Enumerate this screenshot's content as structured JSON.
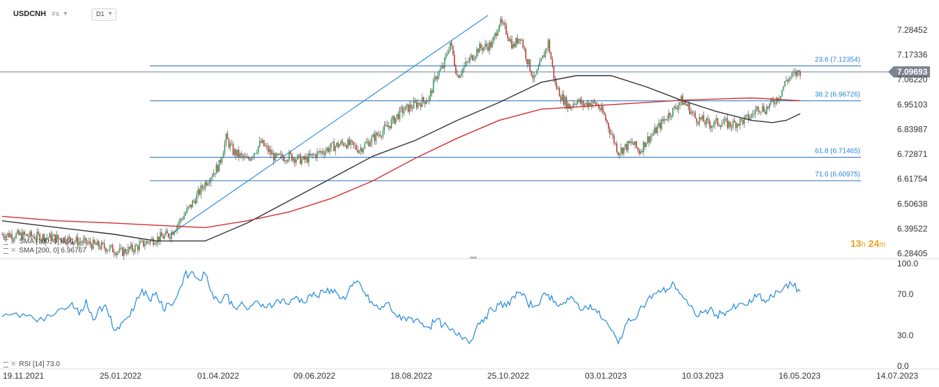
{
  "header": {
    "symbol": "USDCNH",
    "market": "FX",
    "timeframe": "D1"
  },
  "chart_data": {
    "type": "candlestick",
    "main_ylim": [
      6.27,
      7.35
    ],
    "yticks": [
      "7.28452",
      "7.17336",
      "7.06220",
      "6.95103",
      "6.83987",
      "6.72871",
      "6.61754",
      "6.50638",
      "6.39522",
      "6.28405"
    ],
    "ytick_values": [
      7.28452,
      7.17336,
      7.0622,
      6.95103,
      6.83987,
      6.72871,
      6.61754,
      6.50638,
      6.39522,
      6.28405
    ],
    "xticks": [
      "19.11.2021",
      "25.01.2022",
      "01.04.2022",
      "09.06.2022",
      "18.08.2022",
      "25.10.2022",
      "03.01.2023",
      "10.03.2023",
      "16.05.2023",
      "14.07.2023"
    ],
    "current_price": "7.09693",
    "current_price_value": 7.09693,
    "countdown_hours": "13",
    "countdown_h": "h",
    "countdown_minutes": "24",
    "countdown_m": "m",
    "fibonacci": [
      {
        "label": "23.6 (7.12354)",
        "value": 7.12354
      },
      {
        "label": "38.2 (6.96726)",
        "value": 6.96726
      },
      {
        "label": "61.8 (6.71465)",
        "value": 6.71465
      },
      {
        "label": "71.6 (6.60975)",
        "value": 6.60975
      }
    ],
    "price_path": [
      [
        0,
        6.37
      ],
      [
        25,
        6.36
      ],
      [
        45,
        6.35
      ],
      [
        60,
        6.33
      ],
      [
        75,
        6.31
      ],
      [
        85,
        6.29
      ],
      [
        95,
        6.31
      ],
      [
        105,
        6.34
      ],
      [
        120,
        6.37
      ],
      [
        135,
        6.5
      ],
      [
        145,
        6.6
      ],
      [
        155,
        6.68
      ],
      [
        160,
        6.8
      ],
      [
        165,
        6.74
      ],
      [
        175,
        6.7
      ],
      [
        185,
        6.78
      ],
      [
        195,
        6.71
      ],
      [
        205,
        6.72
      ],
      [
        215,
        6.7
      ],
      [
        225,
        6.73
      ],
      [
        235,
        6.76
      ],
      [
        245,
        6.78
      ],
      [
        255,
        6.75
      ],
      [
        265,
        6.8
      ],
      [
        275,
        6.85
      ],
      [
        285,
        6.92
      ],
      [
        295,
        6.95
      ],
      [
        305,
        6.98
      ],
      [
        310,
        7.08
      ],
      [
        315,
        7.12
      ],
      [
        320,
        7.23
      ],
      [
        325,
        7.08
      ],
      [
        330,
        7.12
      ],
      [
        340,
        7.2
      ],
      [
        350,
        7.22
      ],
      [
        355,
        7.32
      ],
      [
        360,
        7.28
      ],
      [
        365,
        7.21
      ],
      [
        370,
        7.26
      ],
      [
        375,
        7.15
      ],
      [
        380,
        7.06
      ],
      [
        385,
        7.14
      ],
      [
        390,
        7.23
      ],
      [
        395,
        7.04
      ],
      [
        400,
        6.98
      ],
      [
        405,
        6.94
      ],
      [
        410,
        6.97
      ],
      [
        415,
        6.95
      ],
      [
        420,
        6.96
      ],
      [
        425,
        6.95
      ],
      [
        430,
        6.9
      ],
      [
        435,
        6.82
      ],
      [
        440,
        6.74
      ],
      [
        445,
        6.76
      ],
      [
        450,
        6.78
      ],
      [
        455,
        6.74
      ],
      [
        460,
        6.79
      ],
      [
        465,
        6.82
      ],
      [
        470,
        6.86
      ],
      [
        475,
        6.9
      ],
      [
        480,
        6.93
      ],
      [
        485,
        6.97
      ],
      [
        490,
        6.94
      ],
      [
        495,
        6.89
      ],
      [
        500,
        6.88
      ],
      [
        505,
        6.86
      ],
      [
        510,
        6.87
      ],
      [
        515,
        6.87
      ],
      [
        520,
        6.86
      ],
      [
        525,
        6.87
      ],
      [
        530,
        6.88
      ],
      [
        535,
        6.9
      ],
      [
        540,
        6.94
      ],
      [
        545,
        6.93
      ],
      [
        550,
        6.96
      ],
      [
        555,
        6.99
      ],
      [
        560,
        7.06
      ],
      [
        565,
        7.08
      ],
      [
        570,
        7.1
      ]
    ],
    "trend_line": [
      [
        0,
        6.36
      ],
      [
        355,
        7.35
      ]
    ],
    "series": [
      {
        "name": "SMA [100, 0] 6.91",
        "color": "#333333",
        "values": [
          [
            0,
            6.43
          ],
          [
            40,
            6.4
          ],
          [
            80,
            6.37
          ],
          [
            110,
            6.34
          ],
          [
            145,
            6.34
          ],
          [
            175,
            6.42
          ],
          [
            205,
            6.52
          ],
          [
            235,
            6.62
          ],
          [
            265,
            6.72
          ],
          [
            295,
            6.79
          ],
          [
            325,
            6.88
          ],
          [
            355,
            6.96
          ],
          [
            385,
            7.05
          ],
          [
            410,
            7.08
          ],
          [
            435,
            7.08
          ],
          [
            460,
            7.03
          ],
          [
            485,
            6.97
          ],
          [
            510,
            6.92
          ],
          [
            535,
            6.88
          ],
          [
            550,
            6.87
          ],
          [
            560,
            6.88
          ],
          [
            570,
            6.91
          ]
        ]
      },
      {
        "name": "SMA [200, 0] 6.96767",
        "color": "#d03030",
        "values": [
          [
            0,
            6.45
          ],
          [
            40,
            6.43
          ],
          [
            80,
            6.42
          ],
          [
            110,
            6.41
          ],
          [
            145,
            6.4
          ],
          [
            175,
            6.43
          ],
          [
            205,
            6.47
          ],
          [
            235,
            6.53
          ],
          [
            265,
            6.61
          ],
          [
            295,
            6.71
          ],
          [
            325,
            6.8
          ],
          [
            355,
            6.88
          ],
          [
            385,
            6.93
          ],
          [
            410,
            6.94
          ],
          [
            435,
            6.95
          ],
          [
            460,
            6.96
          ],
          [
            485,
            6.97
          ],
          [
            510,
            6.975
          ],
          [
            535,
            6.98
          ],
          [
            550,
            6.975
          ],
          [
            570,
            6.96767
          ]
        ]
      }
    ],
    "rsi": {
      "label": "RSI [14] 73.0",
      "ylim": [
        0,
        100
      ],
      "yticks": [
        "100.0",
        "70.0",
        "30.0",
        "0.0"
      ],
      "ytick_values": [
        100,
        70,
        30,
        0
      ],
      "values": [
        [
          0,
          48
        ],
        [
          10,
          52
        ],
        [
          20,
          50
        ],
        [
          30,
          44
        ],
        [
          40,
          55
        ],
        [
          50,
          62
        ],
        [
          55,
          50
        ],
        [
          60,
          65
        ],
        [
          65,
          45
        ],
        [
          70,
          58
        ],
        [
          75,
          55
        ],
        [
          80,
          35
        ],
        [
          85,
          42
        ],
        [
          90,
          48
        ],
        [
          95,
          60
        ],
        [
          100,
          75
        ],
        [
          105,
          65
        ],
        [
          110,
          72
        ],
        [
          115,
          55
        ],
        [
          120,
          60
        ],
        [
          125,
          68
        ],
        [
          130,
          88
        ],
        [
          135,
          92
        ],
        [
          140,
          85
        ],
        [
          145,
          90
        ],
        [
          150,
          72
        ],
        [
          155,
          62
        ],
        [
          160,
          70
        ],
        [
          165,
          58
        ],
        [
          170,
          60
        ],
        [
          175,
          55
        ],
        [
          180,
          62
        ],
        [
          185,
          58
        ],
        [
          190,
          60
        ],
        [
          195,
          62
        ],
        [
          200,
          65
        ],
        [
          205,
          60
        ],
        [
          210,
          68
        ],
        [
          215,
          62
        ],
        [
          220,
          70
        ],
        [
          225,
          68
        ],
        [
          230,
          72
        ],
        [
          235,
          75
        ],
        [
          240,
          70
        ],
        [
          245,
          65
        ],
        [
          250,
          78
        ],
        [
          255,
          82
        ],
        [
          260,
          68
        ],
        [
          265,
          60
        ],
        [
          270,
          55
        ],
        [
          275,
          62
        ],
        [
          280,
          52
        ],
        [
          285,
          45
        ],
        [
          290,
          48
        ],
        [
          295,
          45
        ],
        [
          300,
          42
        ],
        [
          305,
          38
        ],
        [
          310,
          45
        ],
        [
          315,
          40
        ],
        [
          320,
          35
        ],
        [
          325,
          30
        ],
        [
          330,
          28
        ],
        [
          335,
          25
        ],
        [
          340,
          42
        ],
        [
          345,
          48
        ],
        [
          350,
          55
        ],
        [
          355,
          60
        ],
        [
          360,
          58
        ],
        [
          365,
          68
        ],
        [
          370,
          72
        ],
        [
          375,
          62
        ],
        [
          380,
          58
        ],
        [
          385,
          66
        ],
        [
          390,
          70
        ],
        [
          395,
          63
        ],
        [
          400,
          60
        ],
        [
          405,
          65
        ],
        [
          410,
          62
        ],
        [
          415,
          55
        ],
        [
          420,
          60
        ],
        [
          425,
          52
        ],
        [
          430,
          45
        ],
        [
          435,
          35
        ],
        [
          440,
          22
        ],
        [
          445,
          40
        ],
        [
          450,
          45
        ],
        [
          455,
          55
        ],
        [
          460,
          62
        ],
        [
          465,
          70
        ],
        [
          470,
          72
        ],
        [
          475,
          75
        ],
        [
          480,
          80
        ],
        [
          485,
          70
        ],
        [
          490,
          60
        ],
        [
          495,
          50
        ],
        [
          500,
          52
        ],
        [
          505,
          55
        ],
        [
          510,
          50
        ],
        [
          515,
          52
        ],
        [
          520,
          55
        ],
        [
          525,
          58
        ],
        [
          530,
          60
        ],
        [
          535,
          62
        ],
        [
          540,
          70
        ],
        [
          545,
          62
        ],
        [
          550,
          68
        ],
        [
          555,
          72
        ],
        [
          560,
          80
        ],
        [
          565,
          78
        ],
        [
          570,
          73
        ]
      ]
    }
  }
}
